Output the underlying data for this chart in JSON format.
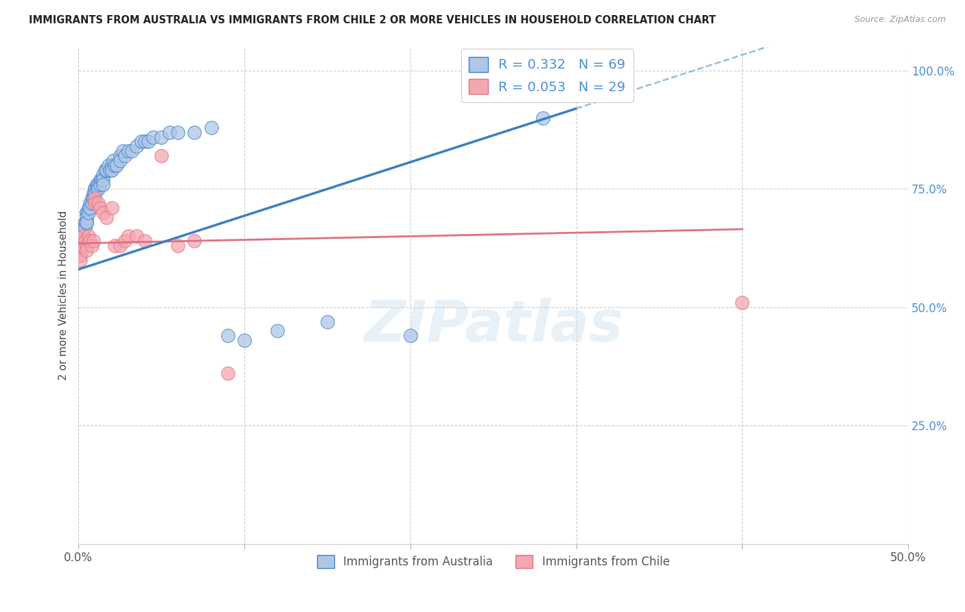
{
  "title": "IMMIGRANTS FROM AUSTRALIA VS IMMIGRANTS FROM CHILE 2 OR MORE VEHICLES IN HOUSEHOLD CORRELATION CHART",
  "source": "Source: ZipAtlas.com",
  "ylabel": "2 or more Vehicles in Household",
  "xlim": [
    0.0,
    0.5
  ],
  "ylim": [
    0.0,
    1.05
  ],
  "australia_color": "#aec6e8",
  "chile_color": "#f4a7b0",
  "australia_line_color": "#3a7fc1",
  "chile_line_color": "#e07080",
  "trend_ext_color": "#99bcd8",
  "R_australia": 0.332,
  "N_australia": 69,
  "R_chile": 0.053,
  "N_chile": 29,
  "watermark": "ZIPatlas",
  "aus_trend_x0": 0.0,
  "aus_trend_y0": 0.58,
  "aus_trend_x1": 0.3,
  "aus_trend_y1": 0.92,
  "aus_trend_ext_x1": 0.42,
  "aus_trend_ext_y1": 1.06,
  "chile_trend_x0": 0.0,
  "chile_trend_y0": 0.635,
  "chile_trend_x1": 0.4,
  "chile_trend_y1": 0.665,
  "australia_scatter_x": [
    0.001,
    0.001,
    0.001,
    0.001,
    0.002,
    0.002,
    0.002,
    0.003,
    0.003,
    0.003,
    0.004,
    0.004,
    0.005,
    0.005,
    0.005,
    0.005,
    0.005,
    0.006,
    0.006,
    0.007,
    0.007,
    0.008,
    0.008,
    0.009,
    0.009,
    0.01,
    0.01,
    0.01,
    0.011,
    0.011,
    0.012,
    0.012,
    0.013,
    0.013,
    0.014,
    0.015,
    0.015,
    0.015,
    0.016,
    0.017,
    0.018,
    0.019,
    0.02,
    0.02,
    0.021,
    0.022,
    0.023,
    0.025,
    0.025,
    0.027,
    0.028,
    0.03,
    0.032,
    0.035,
    0.038,
    0.04,
    0.042,
    0.045,
    0.05,
    0.055,
    0.06,
    0.07,
    0.08,
    0.09,
    0.1,
    0.12,
    0.15,
    0.2,
    0.28
  ],
  "australia_scatter_y": [
    0.63,
    0.62,
    0.62,
    0.61,
    0.65,
    0.64,
    0.63,
    0.67,
    0.66,
    0.65,
    0.68,
    0.67,
    0.7,
    0.7,
    0.69,
    0.68,
    0.68,
    0.71,
    0.7,
    0.72,
    0.71,
    0.73,
    0.72,
    0.74,
    0.73,
    0.75,
    0.75,
    0.74,
    0.76,
    0.75,
    0.76,
    0.75,
    0.77,
    0.76,
    0.77,
    0.78,
    0.77,
    0.76,
    0.79,
    0.79,
    0.8,
    0.79,
    0.8,
    0.79,
    0.81,
    0.8,
    0.8,
    0.82,
    0.81,
    0.83,
    0.82,
    0.83,
    0.83,
    0.84,
    0.85,
    0.85,
    0.85,
    0.86,
    0.86,
    0.87,
    0.87,
    0.87,
    0.88,
    0.44,
    0.43,
    0.45,
    0.47,
    0.44,
    0.9
  ],
  "chile_scatter_x": [
    0.001,
    0.001,
    0.002,
    0.003,
    0.004,
    0.005,
    0.005,
    0.006,
    0.007,
    0.008,
    0.009,
    0.01,
    0.01,
    0.012,
    0.013,
    0.015,
    0.017,
    0.02,
    0.022,
    0.025,
    0.028,
    0.03,
    0.035,
    0.04,
    0.05,
    0.06,
    0.07,
    0.09,
    0.4
  ],
  "chile_scatter_y": [
    0.61,
    0.6,
    0.63,
    0.65,
    0.64,
    0.63,
    0.62,
    0.65,
    0.64,
    0.63,
    0.64,
    0.73,
    0.72,
    0.72,
    0.71,
    0.7,
    0.69,
    0.71,
    0.63,
    0.63,
    0.64,
    0.65,
    0.65,
    0.64,
    0.82,
    0.63,
    0.64,
    0.36,
    0.51
  ]
}
